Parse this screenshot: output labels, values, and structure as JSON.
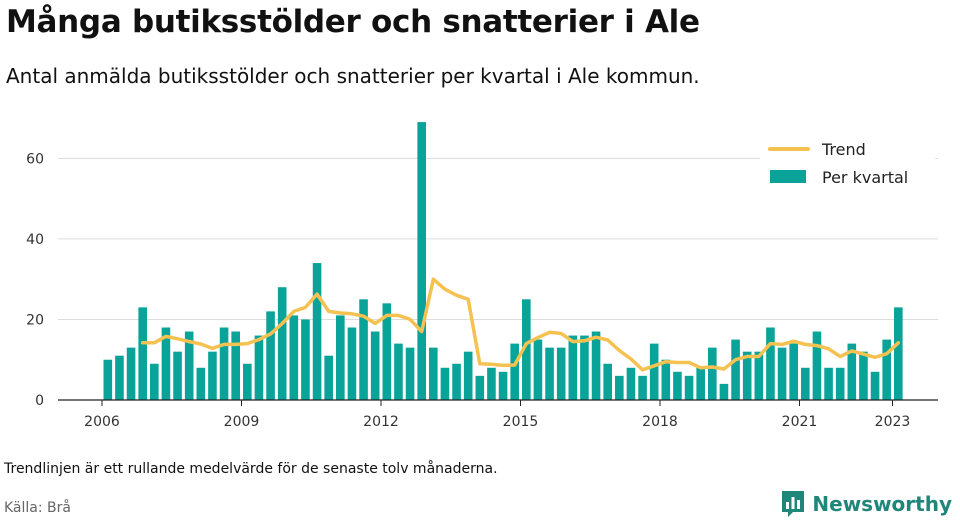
{
  "header": {
    "title": "Många butiksstölder och snatterier i Ale",
    "subtitle": "Antal anmälda butiksstölder och snatterier per kvartal i Ale kommun."
  },
  "footer": {
    "note": "Trendlinjen är ett rullande medelvärde för de senaste tolv månaderna.",
    "source": "Källa: Brå",
    "brand": "Newsworthy"
  },
  "icons": {
    "brand_logo": "bar-chart-speech-bubble-icon"
  },
  "colors": {
    "bars": "#0aa39a",
    "trend": "#f5c150",
    "brand": "#21867a"
  },
  "chart_data": {
    "type": "bar",
    "title": "",
    "xlabel": "",
    "ylabel": "",
    "ylim": [
      0,
      72
    ],
    "yticks": [
      0,
      20,
      40,
      60
    ],
    "xticks": [
      "2006",
      "2009",
      "2012",
      "2015",
      "2018",
      "2021",
      "2023"
    ],
    "grid": true,
    "legend_position": "top-right",
    "x_start": 2006,
    "categories": [
      "2006 Q1",
      "2006 Q2",
      "2006 Q3",
      "2006 Q4",
      "2007 Q1",
      "2007 Q2",
      "2007 Q3",
      "2007 Q4",
      "2008 Q1",
      "2008 Q2",
      "2008 Q3",
      "2008 Q4",
      "2009 Q1",
      "2009 Q2",
      "2009 Q3",
      "2009 Q4",
      "2010 Q1",
      "2010 Q2",
      "2010 Q3",
      "2010 Q4",
      "2011 Q1",
      "2011 Q2",
      "2011 Q3",
      "2011 Q4",
      "2012 Q1",
      "2012 Q2",
      "2012 Q3",
      "2012 Q4",
      "2013 Q1",
      "2013 Q2",
      "2013 Q3",
      "2013 Q4",
      "2014 Q1",
      "2014 Q2",
      "2014 Q3",
      "2014 Q4",
      "2015 Q1",
      "2015 Q2",
      "2015 Q3",
      "2015 Q4",
      "2016 Q1",
      "2016 Q2",
      "2016 Q3",
      "2016 Q4",
      "2017 Q1",
      "2017 Q2",
      "2017 Q3",
      "2017 Q4",
      "2018 Q1",
      "2018 Q2",
      "2018 Q3",
      "2018 Q4",
      "2019 Q1",
      "2019 Q2",
      "2019 Q3",
      "2019 Q4",
      "2020 Q1",
      "2020 Q2",
      "2020 Q3",
      "2020 Q4",
      "2021 Q1",
      "2021 Q2",
      "2021 Q3",
      "2021 Q4",
      "2022 Q1",
      "2022 Q2",
      "2022 Q3",
      "2022 Q4",
      "2023 Q1"
    ],
    "series": [
      {
        "name": "Per kvartal",
        "type": "bar",
        "values": [
          10,
          11,
          13,
          23,
          9,
          18,
          12,
          17,
          8,
          12,
          18,
          17,
          9,
          16,
          22,
          28,
          21,
          20,
          34,
          11,
          21,
          18,
          25,
          17,
          24,
          14,
          13,
          69,
          13,
          8,
          9,
          12,
          6,
          8,
          7,
          14,
          25,
          15,
          13,
          13,
          16,
          16,
          17,
          9,
          6,
          8,
          6,
          14,
          10,
          7,
          6,
          8,
          13,
          4,
          15,
          12,
          12,
          18,
          13,
          14,
          8,
          17,
          8,
          8,
          14,
          12,
          7,
          15,
          23
        ]
      },
      {
        "name": "Trend",
        "type": "line",
        "values": [
          null,
          null,
          null,
          14.2,
          14.2,
          15.8,
          15.2,
          14.5,
          13.9,
          12.8,
          13.8,
          13.8,
          14.0,
          15.0,
          16.4,
          19.0,
          22.0,
          23.0,
          26.3,
          22.0,
          21.6,
          21.4,
          20.8,
          19.0,
          21.0,
          21.0,
          20.0,
          17.0,
          30.0,
          27.5,
          26.0,
          25.0,
          9.0,
          8.9,
          8.6,
          8.7,
          14.0,
          15.5,
          16.8,
          16.5,
          14.5,
          14.7,
          15.6,
          14.9,
          12.3,
          10.2,
          7.5,
          8.5,
          9.5,
          9.3,
          9.3,
          8.0,
          8.2,
          7.7,
          10.0,
          10.8,
          10.8,
          14.0,
          13.8,
          14.6,
          13.8,
          13.5,
          12.7,
          10.8,
          12.2,
          11.4,
          10.6,
          11.5,
          14.2
        ]
      }
    ]
  }
}
